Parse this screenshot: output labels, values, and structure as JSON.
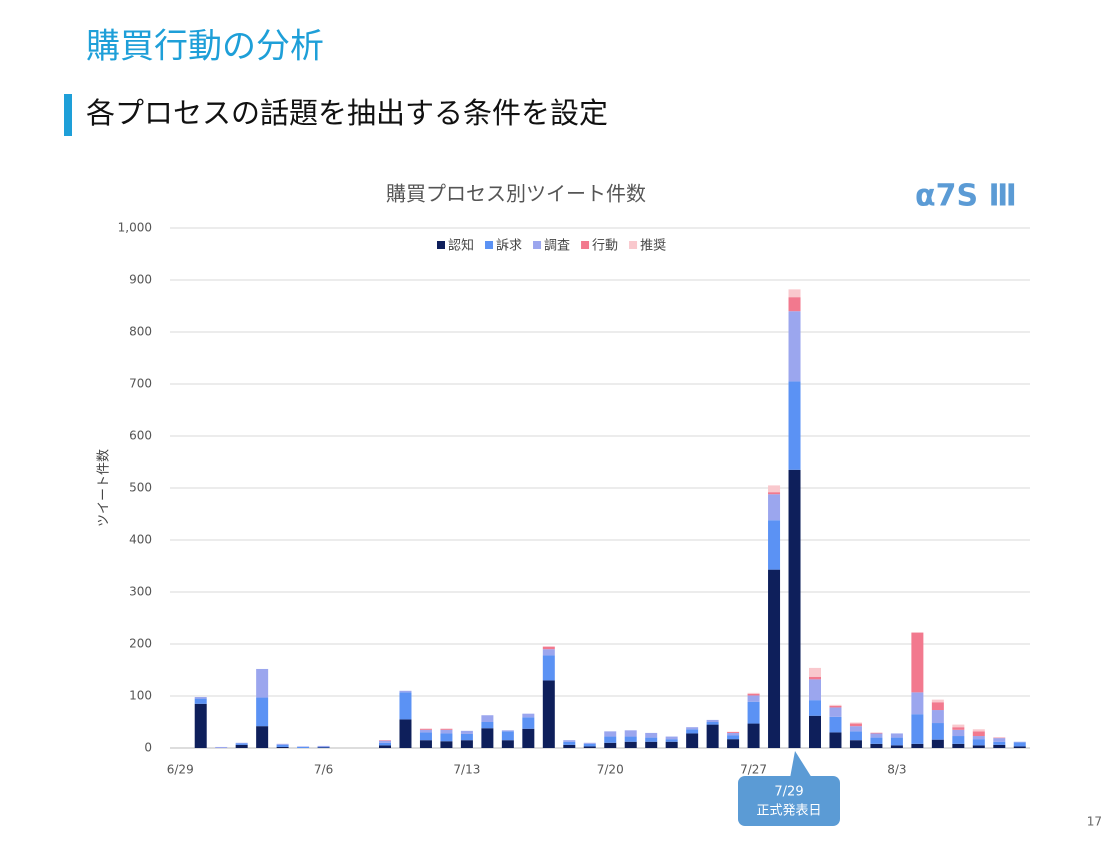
{
  "header": {
    "title": "購買行動の分析",
    "subtitle": "各プロセスの話題を抽出する条件を設定",
    "brand": "α7S Ⅲ",
    "page_number": "17"
  },
  "chart_data": {
    "type": "bar",
    "stacked": true,
    "title": "購買プロセス別ツイート件数",
    "y_label": "ツイート件数",
    "categories": [
      "6/29",
      null,
      null,
      null,
      null,
      null,
      null,
      "7/6",
      null,
      null,
      null,
      null,
      null,
      null,
      "7/13",
      null,
      null,
      null,
      null,
      null,
      null,
      "7/20",
      null,
      null,
      null,
      null,
      null,
      null,
      "7/27",
      null,
      null,
      null,
      null,
      null,
      null,
      "8/3",
      null,
      null,
      null,
      null,
      null,
      null
    ],
    "series": [
      {
        "name": "認知",
        "color": "#0e1f5b",
        "values": [
          0,
          85,
          0,
          6,
          42,
          2,
          0,
          1,
          0,
          0,
          5,
          55,
          15,
          13,
          15,
          38,
          15,
          37,
          130,
          6,
          3,
          10,
          12,
          12,
          12,
          28,
          45,
          17,
          47,
          343,
          535,
          62,
          30,
          15,
          8,
          5,
          8,
          16,
          8,
          5,
          6,
          3
        ]
      },
      {
        "name": "訴求",
        "color": "#5b92f4",
        "values": [
          0,
          10,
          0,
          3,
          55,
          4,
          2,
          1,
          0,
          0,
          5,
          52,
          15,
          15,
          12,
          12,
          17,
          22,
          48,
          6,
          5,
          12,
          10,
          8,
          5,
          8,
          5,
          7,
          42,
          95,
          170,
          30,
          30,
          17,
          12,
          15,
          57,
          32,
          15,
          12,
          6,
          8
        ]
      },
      {
        "name": "調査",
        "color": "#9ba6ee",
        "values": [
          0,
          3,
          2,
          1,
          55,
          2,
          1,
          2,
          0,
          0,
          4,
          3,
          5,
          7,
          6,
          13,
          2,
          7,
          12,
          3,
          2,
          10,
          12,
          9,
          5,
          4,
          4,
          5,
          12,
          50,
          135,
          40,
          18,
          10,
          8,
          8,
          42,
          25,
          12,
          6,
          7,
          1
        ]
      },
      {
        "name": "行動",
        "color": "#f2798e",
        "values": [
          0,
          0,
          0,
          0,
          0,
          0,
          0,
          0,
          0,
          0,
          1,
          0,
          2,
          2,
          0,
          0,
          0,
          0,
          5,
          0,
          0,
          0,
          0,
          0,
          0,
          0,
          0,
          2,
          3,
          4,
          27,
          5,
          3,
          5,
          1,
          0,
          115,
          15,
          5,
          9,
          1,
          0
        ]
      },
      {
        "name": "推奨",
        "color": "#f9c8cd",
        "values": [
          0,
          0,
          0,
          0,
          0,
          0,
          0,
          0,
          0,
          0,
          0,
          0,
          0,
          0,
          0,
          0,
          0,
          0,
          0,
          0,
          0,
          0,
          0,
          0,
          0,
          0,
          0,
          0,
          2,
          13,
          15,
          17,
          2,
          2,
          1,
          0,
          0,
          5,
          5,
          4,
          0,
          0
        ]
      }
    ],
    "ylim": [
      0,
      1000
    ],
    "yticks": [
      0,
      100,
      200,
      300,
      400,
      500,
      600,
      700,
      800,
      900,
      {
        "value": 1000,
        "label": "1,000"
      }
    ],
    "grid": true,
    "legend": "top",
    "annotation": {
      "date": "7/29",
      "text": "正式発表日",
      "color": "#5b9bd5"
    }
  }
}
